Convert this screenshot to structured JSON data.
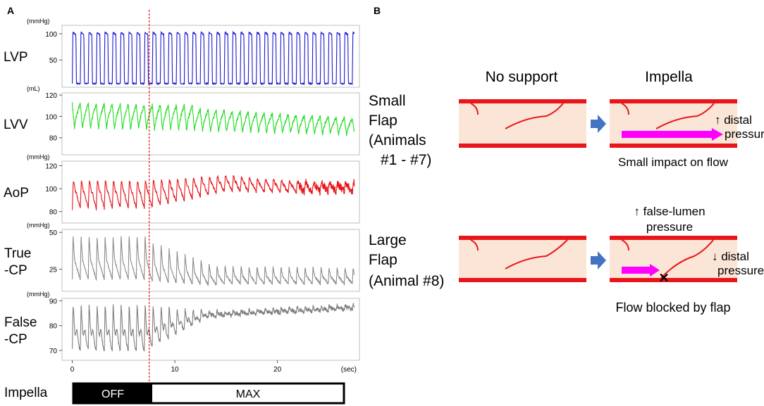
{
  "panel_a": {
    "label": "A",
    "impella_divider_time_sec": 7.5,
    "x_axis": {
      "ticks": [
        "0",
        "10",
        "20"
      ],
      "unit": "(sec)"
    },
    "impella_bar": {
      "label": "Impella",
      "off_label": "OFF",
      "max_label": "MAX"
    }
  },
  "panel_b": {
    "label": "B",
    "col_no_support": "No support",
    "col_impella": "Impella",
    "small": {
      "row_label": [
        "Small",
        "Flap",
        "(Animals",
        "#1 - #7)"
      ],
      "annot1": "↑ distal",
      "annot2": "pressure",
      "caption": "Small impact on flow"
    },
    "large": {
      "row_label": [
        "Large",
        "Flap",
        "(Animal #8)"
      ],
      "top_annot1": "↑ false-lumen",
      "top_annot2": "pressure",
      "annot1": "↓ distal",
      "annot2": "pressure",
      "caption": "Flow blocked by flap"
    },
    "colors": {
      "vessel": "#e8161b",
      "lumen": "#fbe5d6",
      "flow_arrow": "#ff00ff",
      "transition_arrow": "#4472c4"
    }
  },
  "chart_data": [
    {
      "type": "line",
      "name": "LVP",
      "title": "LVP",
      "unit": "(mmHg)",
      "color": "#1a1acc",
      "yticks": [
        100,
        50
      ],
      "ylim": [
        -2,
        116
      ],
      "xlim": [
        -1,
        28
      ],
      "series": [
        {
          "name": "LVP",
          "segments": [
            {
              "t0": 0,
              "t1": 27.5,
              "period": 0.78,
              "base": 5,
              "amp": 98,
              "amp_ramp": 0,
              "mean_drift": 0,
              "noise": 1,
              "style": "lvp"
            }
          ]
        }
      ]
    },
    {
      "type": "line",
      "name": "LVV",
      "title": "LVV",
      "unit": "(mL)",
      "color": "#22dd22",
      "yticks": [
        120,
        100,
        80
      ],
      "ylim": [
        64,
        122
      ],
      "xlim": [
        -1,
        28
      ],
      "series": [
        {
          "name": "LVV",
          "segments": [
            {
              "t0": 0,
              "t1": 12,
              "period": 0.78,
              "base": 100,
              "amp": 24,
              "amp_ramp": 0,
              "mean_drift": -2,
              "noise": 1.5,
              "style": "saw"
            },
            {
              "t0": 12,
              "t1": 27.5,
              "period": 0.78,
              "base": 96,
              "amp": 22,
              "amp_ramp": -6,
              "mean_drift": -6,
              "noise": 1.5,
              "style": "saw"
            }
          ]
        }
      ]
    },
    {
      "type": "line",
      "name": "AoP",
      "title": "AoP",
      "unit": "(mmHg)",
      "color": "#e8161b",
      "yticks": [
        120,
        100,
        80
      ],
      "ylim": [
        70,
        124
      ],
      "xlim": [
        -1,
        28
      ],
      "series": [
        {
          "name": "AoP",
          "segments": [
            {
              "t0": 0,
              "t1": 7.5,
              "period": 0.78,
              "base": 94,
              "amp": 24,
              "amp_ramp": 0,
              "mean_drift": 0,
              "noise": 1,
              "style": "aop"
            },
            {
              "t0": 7.5,
              "t1": 15,
              "period": 0.78,
              "base": 94,
              "amp": 24,
              "amp_ramp": -10,
              "mean_drift": 10,
              "noise": 1,
              "style": "aop"
            },
            {
              "t0": 15,
              "t1": 22,
              "period": 0.78,
              "base": 104,
              "amp": 14,
              "amp_ramp": -4,
              "mean_drift": -3,
              "noise": 1.2,
              "style": "aop"
            },
            {
              "t0": 22,
              "t1": 27.5,
              "period": 0.78,
              "base": 101,
              "amp": 9,
              "amp_ramp": 0,
              "mean_drift": 0,
              "noise": 3.5,
              "style": "aop"
            }
          ]
        }
      ]
    },
    {
      "type": "line",
      "name": "True-CP",
      "title": "True\n-CP",
      "unit": "(mmHg)",
      "color": "#8c8c8c",
      "yticks": [
        50,
        25
      ],
      "ylim": [
        10,
        52
      ],
      "xlim": [
        -1,
        28
      ],
      "series": [
        {
          "name": "True-CP",
          "segments": [
            {
              "t0": 0,
              "t1": 7.5,
              "period": 0.78,
              "base": 18,
              "amp": 29,
              "amp_ramp": 0,
              "mean_drift": 0,
              "noise": 0.6,
              "style": "cp"
            },
            {
              "t0": 7.5,
              "t1": 14,
              "period": 0.78,
              "base": 17,
              "amp": 27,
              "amp_ramp": -14,
              "mean_drift": -3,
              "noise": 0.6,
              "style": "cp"
            },
            {
              "t0": 14,
              "t1": 27.5,
              "period": 0.78,
              "base": 15,
              "amp": 12,
              "amp_ramp": -1,
              "mean_drift": 0,
              "noise": 0.6,
              "style": "cp"
            }
          ]
        }
      ]
    },
    {
      "type": "line",
      "name": "False-CP",
      "title": "False\n-CP",
      "unit": "(mmHg)",
      "color": "#7f7f7f",
      "yticks": [
        90,
        80,
        70
      ],
      "ylim": [
        66,
        91
      ],
      "xlim": [
        -1,
        28
      ],
      "series": [
        {
          "name": "False-CP",
          "segments": [
            {
              "t0": 0,
              "t1": 7.5,
              "period": 0.78,
              "base": 70,
              "amp": 18,
              "amp_ramp": 0,
              "mean_drift": 0,
              "noise": 0.7,
              "style": "fcp"
            },
            {
              "t0": 7.5,
              "t1": 13,
              "period": 0.78,
              "base": 71,
              "amp": 17,
              "amp_ramp": -14,
              "mean_drift": 12,
              "noise": 0.7,
              "style": "fcp"
            },
            {
              "t0": 13,
              "t1": 27.5,
              "period": 0.78,
              "base": 83.5,
              "amp": 2,
              "amp_ramp": 0,
              "mean_drift": 3,
              "noise": 0.8,
              "style": "fcp"
            }
          ]
        }
      ]
    }
  ]
}
